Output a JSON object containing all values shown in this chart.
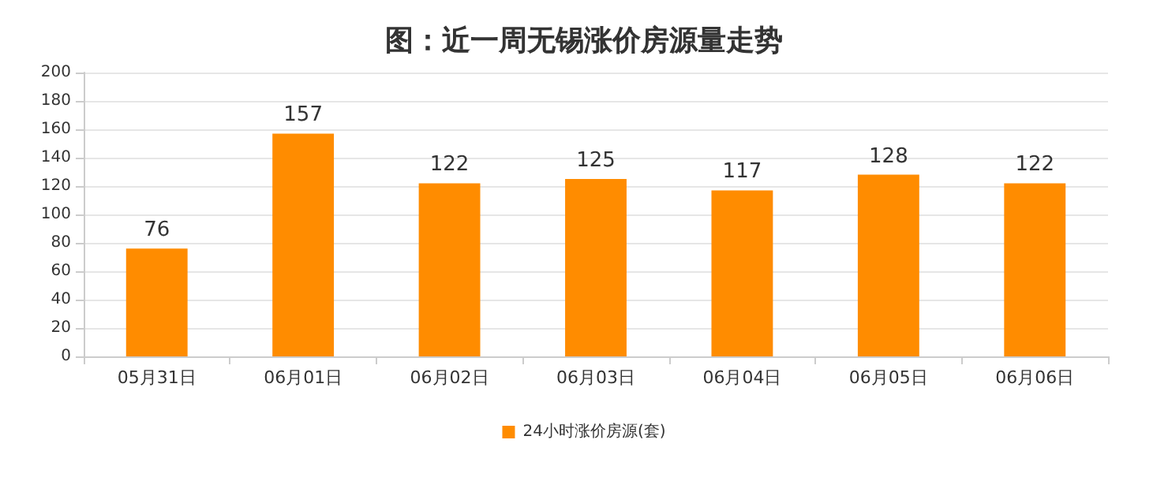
{
  "chart_data": {
    "type": "bar",
    "title": "图：近一周无锡涨价房源量走势",
    "categories": [
      "05月31日",
      "06月01日",
      "06月02日",
      "06月03日",
      "06月04日",
      "06月05日",
      "06月06日"
    ],
    "series": [
      {
        "name": "24小时涨价房源(套)",
        "color": "#ff8c00",
        "values": [
          76,
          157,
          122,
          125,
          117,
          128,
          122
        ]
      }
    ],
    "ylim": [
      0,
      200
    ],
    "yticks": [
      0,
      20,
      40,
      60,
      80,
      100,
      120,
      140,
      160,
      180,
      200
    ],
    "grid": "y",
    "legend": "bottom",
    "data_labels": true
  }
}
